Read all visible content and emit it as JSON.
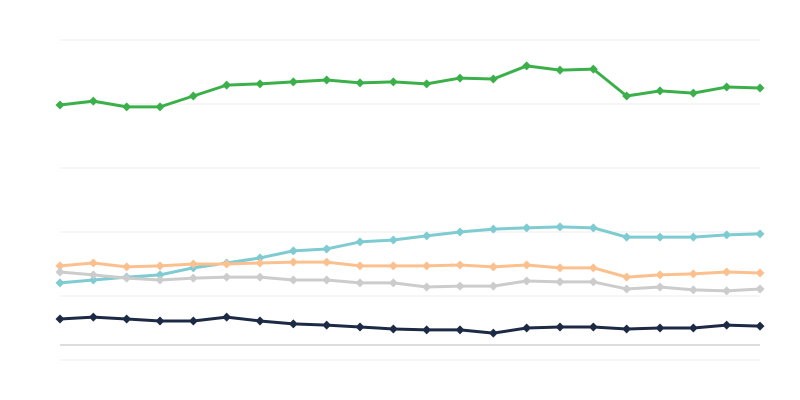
{
  "chart_data": {
    "type": "line",
    "categories": [
      null,
      null,
      null,
      null,
      null,
      null,
      null,
      null,
      null,
      null,
      null,
      null,
      null,
      null,
      null,
      null,
      null,
      null,
      null,
      null,
      null,
      null
    ],
    "series": [
      {
        "color": "#3bb04a",
        "values": [
          79.7,
          80.9,
          79.1,
          79.1,
          82.5,
          85.9,
          86.3,
          86.9,
          87.5,
          86.6,
          86.9,
          86.3,
          88.1,
          87.8,
          91.9,
          90.6,
          90.9,
          82.5,
          84.1,
          83.4,
          85.3,
          85.0
        ]
      },
      {
        "color": "#7ecbd2",
        "values": [
          24.1,
          25.0,
          25.9,
          26.6,
          28.8,
          30.3,
          31.9,
          34.1,
          34.7,
          36.9,
          37.5,
          38.8,
          40.0,
          40.9,
          41.3,
          41.6,
          41.3,
          38.4,
          38.4,
          38.4,
          39.1,
          39.4
        ]
      },
      {
        "color": "#fcc08f",
        "values": [
          29.4,
          30.3,
          29.1,
          29.4,
          30.0,
          30.0,
          30.3,
          30.6,
          30.6,
          29.4,
          29.4,
          29.4,
          29.7,
          29.1,
          29.7,
          28.8,
          28.8,
          25.9,
          26.6,
          26.9,
          27.5,
          27.2
        ]
      },
      {
        "color": "#cccccc",
        "values": [
          27.5,
          26.6,
          25.6,
          25.0,
          25.6,
          25.9,
          25.9,
          25.0,
          25.0,
          24.1,
          24.1,
          22.8,
          23.1,
          23.1,
          24.7,
          24.4,
          24.4,
          22.2,
          22.8,
          21.9,
          21.6,
          22.2
        ]
      },
      {
        "color": "#1d2a45",
        "values": [
          12.8,
          13.4,
          12.8,
          12.2,
          12.2,
          13.4,
          12.2,
          11.3,
          10.9,
          10.3,
          9.7,
          9.4,
          9.4,
          8.4,
          10.0,
          10.3,
          10.3,
          9.7,
          10.0,
          10.0,
          10.9,
          10.6
        ]
      }
    ],
    "ylim": [
      0,
      100
    ],
    "yticks": [
      0,
      20,
      40,
      60,
      80,
      100
    ],
    "grid": true
  }
}
